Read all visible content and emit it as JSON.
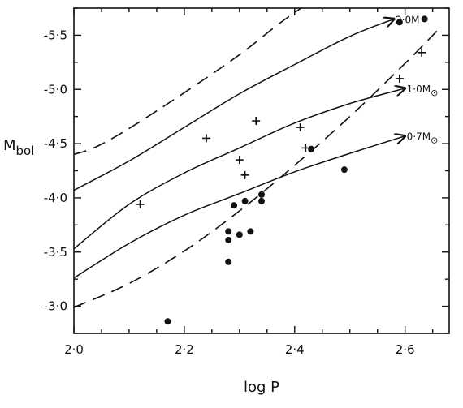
{
  "chart_data": {
    "type": "scatter",
    "xlabel": "log P",
    "ylabel": "Mbol",
    "ylabel_main": "M",
    "ylabel_sub": "bol",
    "xlim": [
      2.0,
      2.68
    ],
    "ylim": [
      -2.75,
      -5.75
    ],
    "x_ticks": [
      2.0,
      2.2,
      2.4,
      2.6
    ],
    "x_tick_labels": [
      "2·0",
      "2·2",
      "2·4",
      "2·6"
    ],
    "y_ticks": [
      -3.0,
      -3.5,
      -4.0,
      -4.5,
      -5.0,
      -5.5
    ],
    "y_tick_labels": [
      "-3·0",
      "-3·5",
      "-4·0",
      "-4·5",
      "-5·0",
      "-5·5"
    ],
    "grid": false,
    "legend": "none",
    "series": [
      {
        "marker": "dot",
        "points": [
          [
            2.17,
            -2.86
          ],
          [
            2.28,
            -3.41
          ],
          [
            2.28,
            -3.61
          ],
          [
            2.28,
            -3.69
          ],
          [
            2.29,
            -3.93
          ],
          [
            2.3,
            -3.66
          ],
          [
            2.31,
            -3.97
          ],
          [
            2.32,
            -3.69
          ],
          [
            2.34,
            -3.97
          ],
          [
            2.34,
            -4.03
          ],
          [
            2.43,
            -4.45
          ],
          [
            2.49,
            -4.26
          ],
          [
            2.59,
            -5.62
          ]
        ]
      },
      {
        "marker": "plus",
        "points": [
          [
            2.12,
            -3.94
          ],
          [
            2.24,
            -4.55
          ],
          [
            2.3,
            -4.35
          ],
          [
            2.31,
            -4.21
          ],
          [
            2.33,
            -4.71
          ],
          [
            2.41,
            -4.65
          ],
          [
            2.42,
            -4.46
          ],
          [
            2.59,
            -5.1
          ],
          [
            2.63,
            -5.34
          ]
        ]
      }
    ],
    "evolutionary_tracks": [
      {
        "label_main": "2·0M",
        "label_sub": "⊙",
        "label_sub_visible": false,
        "end_marker": "dot",
        "points": [
          [
            2.0,
            -4.07
          ],
          [
            2.1,
            -4.34
          ],
          [
            2.2,
            -4.65
          ],
          [
            2.3,
            -4.96
          ],
          [
            2.4,
            -5.23
          ],
          [
            2.5,
            -5.49
          ],
          [
            2.58,
            -5.65
          ]
        ]
      },
      {
        "label_main": "1·0M",
        "label_sub": "⊙",
        "label_sub_visible": true,
        "end_marker": "sun-symbol",
        "points": [
          [
            2.0,
            -3.53
          ],
          [
            2.1,
            -3.94
          ],
          [
            2.2,
            -4.23
          ],
          [
            2.3,
            -4.46
          ],
          [
            2.4,
            -4.69
          ],
          [
            2.5,
            -4.87
          ],
          [
            2.6,
            -5.01
          ]
        ]
      },
      {
        "label_main": "0·7M",
        "label_sub": "⊙",
        "label_sub_visible": true,
        "end_marker": "sun-symbol",
        "points": [
          [
            2.0,
            -3.26
          ],
          [
            2.1,
            -3.58
          ],
          [
            2.2,
            -3.84
          ],
          [
            2.3,
            -4.04
          ],
          [
            2.4,
            -4.24
          ],
          [
            2.5,
            -4.41
          ],
          [
            2.6,
            -4.57
          ]
        ]
      }
    ],
    "boundary_curves": [
      {
        "style": "dashed",
        "points": [
          [
            2.0,
            -4.4
          ],
          [
            2.04,
            -4.47
          ],
          [
            2.1,
            -4.64
          ],
          [
            2.2,
            -4.97
          ],
          [
            2.3,
            -5.32
          ],
          [
            2.37,
            -5.6
          ],
          [
            2.42,
            -5.78
          ]
        ]
      },
      {
        "style": "dashed",
        "points": [
          [
            2.0,
            -2.99
          ],
          [
            2.1,
            -3.21
          ],
          [
            2.2,
            -3.51
          ],
          [
            2.3,
            -3.88
          ],
          [
            2.4,
            -4.3
          ],
          [
            2.5,
            -4.75
          ],
          [
            2.6,
            -5.24
          ],
          [
            2.66,
            -5.55
          ]
        ]
      }
    ]
  }
}
